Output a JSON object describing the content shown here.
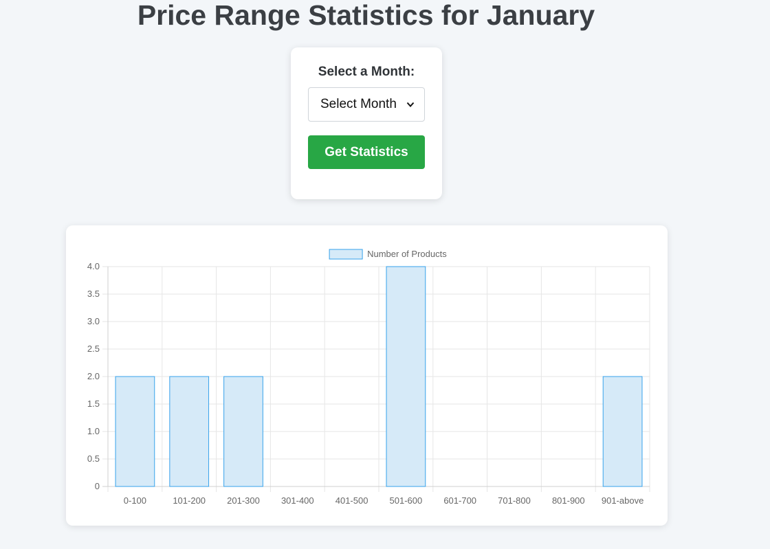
{
  "page": {
    "title": "Price Range Statistics for January"
  },
  "controls": {
    "month_label": "Select a Month:",
    "month_select_value": "Select Month",
    "button_label": "Get Statistics"
  },
  "colors": {
    "bar_fill": "#d6eaf8",
    "bar_stroke": "#36a2eb",
    "button": "#28a745"
  },
  "chart_data": {
    "type": "bar",
    "categories": [
      "0-100",
      "101-200",
      "201-300",
      "301-400",
      "401-500",
      "501-600",
      "601-700",
      "701-800",
      "801-900",
      "901-above"
    ],
    "series": [
      {
        "name": "Number of Products",
        "values": [
          2,
          2,
          2,
          0,
          0,
          4,
          0,
          0,
          0,
          2
        ]
      }
    ],
    "ylim": [
      0,
      4
    ],
    "yticks": [
      "0",
      "0.5",
      "1.0",
      "1.5",
      "2.0",
      "2.5",
      "3.0",
      "3.5",
      "4.0"
    ],
    "grid": true,
    "legend_position": "top"
  }
}
